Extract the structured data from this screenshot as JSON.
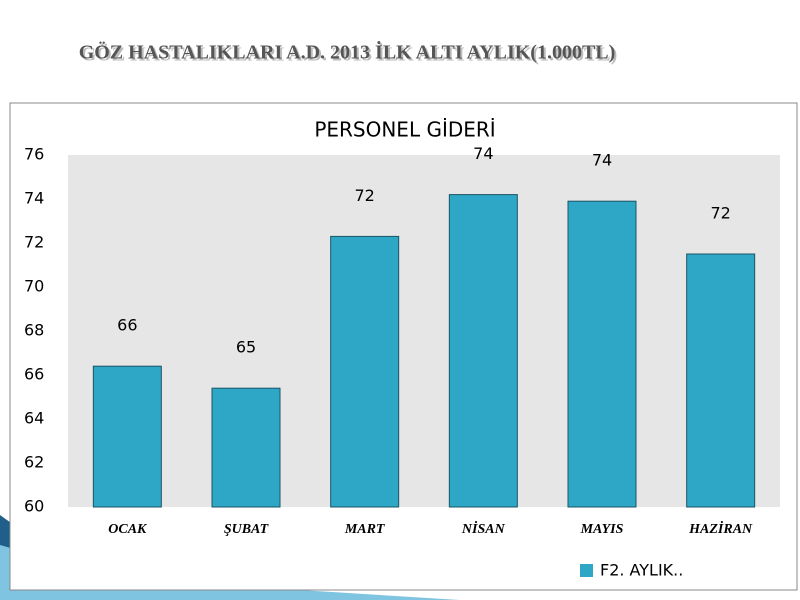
{
  "slide_title": "GÖZ HASTALIKLARI A.D. 2013 İLK ALTI AYLIK(1.000TL)",
  "chart_data": {
    "type": "bar",
    "title": "PERSONEL GİDERİ",
    "categories": [
      "OCAK",
      "ŞUBAT",
      "MART",
      "NİSAN",
      "MAYIS",
      "HAZİRAN"
    ],
    "series": [
      {
        "name": "F2. AYLIK..",
        "color": "#2ea6c6",
        "values": [
          66.4,
          65.4,
          72.3,
          74.2,
          73.9,
          71.5
        ],
        "value_labels": [
          "66",
          "65",
          "72",
          "74",
          "74",
          "72"
        ]
      }
    ],
    "ylim": [
      60,
      76
    ],
    "yticks": [
      60,
      62,
      64,
      66,
      68,
      70,
      72,
      74,
      76
    ],
    "grid": false,
    "legend": "bottom-right"
  }
}
